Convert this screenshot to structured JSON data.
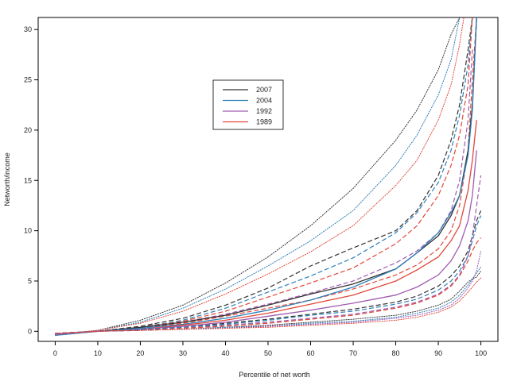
{
  "chart_data": {
    "type": "line",
    "xlabel": "Percentile of net worth",
    "ylabel": "Networth/income",
    "xlim": [
      -4,
      104
    ],
    "ylim": [
      -1.0,
      31.2
    ],
    "xticks": [
      0,
      10,
      20,
      30,
      40,
      50,
      60,
      70,
      80,
      90,
      100
    ],
    "yticks": [
      0,
      5,
      10,
      15,
      20,
      25,
      30
    ],
    "grid": false,
    "legend_position": "upper-center",
    "legend": [
      {
        "label": "2007",
        "color": "#333333"
      },
      {
        "label": "2004",
        "color": "#2f7fb8"
      },
      {
        "label": "1992",
        "color": "#a05cb0"
      },
      {
        "label": "1989",
        "color": "#e0483a"
      }
    ],
    "series": [
      {
        "color": "#333333",
        "style": "dotted",
        "x": [
          0,
          10,
          20,
          30,
          40,
          50,
          60,
          70,
          80,
          85,
          90,
          93,
          95
        ],
        "y": [
          -0.3,
          0.1,
          1.1,
          2.6,
          4.8,
          7.4,
          10.5,
          14.2,
          19.0,
          22.0,
          26.0,
          29.5,
          31.2
        ]
      },
      {
        "color": "#2f7fb8",
        "style": "dotted",
        "x": [
          0,
          10,
          20,
          30,
          40,
          50,
          60,
          70,
          80,
          85,
          90,
          93,
          95
        ],
        "y": [
          -0.4,
          0.1,
          0.9,
          2.3,
          4.2,
          6.5,
          9.0,
          12.0,
          16.5,
          19.5,
          23.5,
          27.0,
          31.2
        ]
      },
      {
        "color": "#e0483a",
        "style": "dotted",
        "x": [
          0,
          10,
          20,
          30,
          40,
          50,
          60,
          70,
          80,
          85,
          90,
          93,
          95,
          96
        ],
        "y": [
          -0.4,
          0.1,
          0.8,
          2.0,
          3.7,
          5.7,
          7.9,
          10.5,
          14.5,
          17.0,
          21.0,
          24.5,
          28.5,
          31.2
        ]
      },
      {
        "color": "#333333",
        "style": "dashed",
        "x": [
          0,
          10,
          20,
          30,
          40,
          50,
          60,
          70,
          80,
          85,
          90,
          93,
          95,
          97,
          98
        ],
        "y": [
          -0.3,
          0.0,
          0.5,
          1.3,
          2.6,
          4.3,
          6.5,
          8.3,
          10.0,
          12.0,
          15.5,
          19.0,
          22.5,
          28.0,
          31.2
        ]
      },
      {
        "color": "#2f7fb8",
        "style": "dashed",
        "x": [
          0,
          10,
          20,
          30,
          40,
          50,
          60,
          70,
          80,
          85,
          90,
          93,
          95,
          97,
          98
        ],
        "y": [
          -0.4,
          0.0,
          0.4,
          1.1,
          2.3,
          3.9,
          5.5,
          7.3,
          9.8,
          11.8,
          14.8,
          18.0,
          21.5,
          26.5,
          31.2
        ]
      },
      {
        "color": "#e0483a",
        "style": "dashed",
        "x": [
          0,
          10,
          20,
          30,
          40,
          50,
          60,
          70,
          80,
          85,
          90,
          93,
          95,
          97,
          98
        ],
        "y": [
          -0.3,
          0.0,
          0.4,
          1.0,
          2.0,
          3.4,
          4.8,
          6.3,
          8.7,
          10.5,
          13.5,
          16.5,
          19.5,
          24.5,
          31.2
        ]
      },
      {
        "color": "#a05cb0",
        "style": "dashed",
        "x": [
          0,
          10,
          20,
          30,
          40,
          50,
          60,
          70,
          80,
          85,
          90,
          93,
          95,
          97,
          98
        ],
        "y": [
          -0.3,
          0.0,
          0.3,
          0.9,
          1.7,
          2.7,
          3.8,
          5.0,
          6.8,
          8.0,
          9.8,
          12.0,
          15.0,
          21.0,
          28.0
        ]
      },
      {
        "color": "#e0483a",
        "style": "dashed",
        "x": [
          0,
          10,
          20,
          30,
          40,
          50,
          60,
          70,
          80,
          85,
          90,
          93,
          95,
          97,
          98,
          99
        ],
        "y": [
          -0.3,
          0.0,
          0.3,
          0.8,
          1.5,
          2.3,
          3.1,
          4.2,
          5.6,
          6.6,
          8.2,
          10.0,
          12.5,
          18.0,
          25.0,
          31.2
        ]
      },
      {
        "color": "#333333",
        "style": "solid",
        "x": [
          0,
          10,
          20,
          30,
          40,
          50,
          60,
          70,
          80,
          85,
          90,
          93,
          95,
          97,
          98,
          99
        ],
        "y": [
          -0.3,
          0.0,
          0.4,
          0.9,
          1.6,
          2.6,
          3.7,
          4.7,
          6.2,
          7.8,
          9.5,
          11.5,
          13.5,
          18.0,
          22.5,
          31.2
        ]
      },
      {
        "color": "#2f7fb8",
        "style": "solid",
        "x": [
          0,
          10,
          20,
          30,
          40,
          50,
          60,
          70,
          80,
          85,
          90,
          93,
          95,
          97,
          98,
          99
        ],
        "y": [
          -0.4,
          0.0,
          0.3,
          0.7,
          1.3,
          2.1,
          3.1,
          4.4,
          6.2,
          7.8,
          9.8,
          11.8,
          13.5,
          17.5,
          22.0,
          31.2
        ]
      },
      {
        "color": "#e0483a",
        "style": "solid",
        "x": [
          0,
          10,
          20,
          30,
          40,
          50,
          60,
          70,
          80,
          85,
          90,
          93,
          95,
          97,
          98,
          99
        ],
        "y": [
          -0.3,
          0.0,
          0.2,
          0.6,
          1.1,
          1.8,
          2.7,
          3.6,
          5.0,
          6.1,
          7.4,
          9.0,
          10.5,
          14.0,
          17.0,
          21.0
        ]
      },
      {
        "color": "#a05cb0",
        "style": "solid",
        "x": [
          0,
          10,
          20,
          30,
          40,
          50,
          60,
          70,
          80,
          85,
          90,
          93,
          95,
          97,
          98,
          99
        ],
        "y": [
          -0.3,
          0.0,
          0.2,
          0.5,
          0.9,
          1.5,
          2.1,
          2.8,
          3.6,
          4.4,
          5.6,
          7.0,
          8.5,
          11.0,
          13.5,
          18.0
        ]
      },
      {
        "color": "#333333",
        "style": "dashed",
        "x": [
          0,
          10,
          20,
          30,
          40,
          50,
          60,
          70,
          80,
          85,
          90,
          93,
          95,
          97,
          98,
          99,
          100
        ],
        "y": [
          -0.2,
          0.0,
          0.2,
          0.4,
          0.8,
          1.2,
          1.7,
          2.2,
          2.9,
          3.5,
          4.5,
          5.5,
          6.5,
          8.0,
          9.5,
          11.0,
          12.0
        ]
      },
      {
        "color": "#2f7fb8",
        "style": "dashed",
        "x": [
          0,
          10,
          20,
          30,
          40,
          50,
          60,
          70,
          80,
          85,
          90,
          93,
          95,
          97,
          98,
          99,
          100
        ],
        "y": [
          -0.2,
          0.0,
          0.2,
          0.4,
          0.7,
          1.1,
          1.6,
          2.0,
          2.7,
          3.2,
          4.1,
          5.0,
          6.0,
          7.5,
          9.0,
          10.5,
          11.5
        ]
      },
      {
        "color": "#a05cb0",
        "style": "dashed",
        "x": [
          0,
          10,
          20,
          30,
          40,
          50,
          60,
          70,
          80,
          85,
          90,
          93,
          95,
          97,
          98,
          99,
          100
        ],
        "y": [
          -0.2,
          0.0,
          0.1,
          0.3,
          0.6,
          0.9,
          1.3,
          1.7,
          2.4,
          2.9,
          3.7,
          4.6,
          5.6,
          7.5,
          9.5,
          12.5,
          15.5
        ]
      },
      {
        "color": "#e0483a",
        "style": "dashed",
        "x": [
          0,
          10,
          20,
          30,
          40,
          50,
          60,
          70,
          80,
          85,
          90,
          93,
          95,
          97,
          98,
          99,
          100
        ],
        "y": [
          -0.2,
          0.0,
          0.1,
          0.3,
          0.5,
          0.8,
          1.2,
          1.6,
          2.3,
          2.8,
          3.6,
          4.5,
          5.5,
          7.0,
          8.0,
          8.8,
          9.3
        ]
      },
      {
        "color": "#333333",
        "style": "dotted",
        "x": [
          0,
          10,
          20,
          30,
          40,
          50,
          60,
          70,
          80,
          85,
          90,
          93,
          95,
          97,
          98,
          99,
          100
        ],
        "y": [
          -0.2,
          0.0,
          0.1,
          0.2,
          0.4,
          0.6,
          0.9,
          1.2,
          1.6,
          2.0,
          2.6,
          3.2,
          4.0,
          4.9,
          5.2,
          5.4,
          6.0
        ]
      },
      {
        "color": "#2f7fb8",
        "style": "dotted",
        "x": [
          0,
          10,
          20,
          30,
          40,
          50,
          60,
          70,
          80,
          85,
          90,
          93,
          95,
          97,
          98,
          99,
          100
        ],
        "y": [
          -0.2,
          0.0,
          0.1,
          0.2,
          0.4,
          0.5,
          0.8,
          1.0,
          1.4,
          1.8,
          2.3,
          2.9,
          3.6,
          4.6,
          5.2,
          5.8,
          6.4
        ]
      },
      {
        "color": "#a05cb0",
        "style": "dotted",
        "x": [
          0,
          10,
          20,
          30,
          40,
          50,
          60,
          70,
          80,
          85,
          90,
          93,
          95,
          97,
          98,
          99,
          100
        ],
        "y": [
          -0.2,
          0.0,
          0.1,
          0.2,
          0.3,
          0.5,
          0.7,
          0.9,
          1.3,
          1.6,
          2.1,
          2.6,
          3.3,
          4.3,
          5.0,
          6.0,
          8.0
        ]
      },
      {
        "color": "#e0483a",
        "style": "dotted",
        "x": [
          0,
          10,
          20,
          30,
          40,
          50,
          60,
          70,
          80,
          85,
          90,
          93,
          95,
          97,
          98,
          99,
          100
        ],
        "y": [
          -0.2,
          0.0,
          0.1,
          0.2,
          0.3,
          0.4,
          0.6,
          0.8,
          1.1,
          1.4,
          1.9,
          2.4,
          3.0,
          3.9,
          4.4,
          4.9,
          5.3
        ]
      }
    ]
  }
}
